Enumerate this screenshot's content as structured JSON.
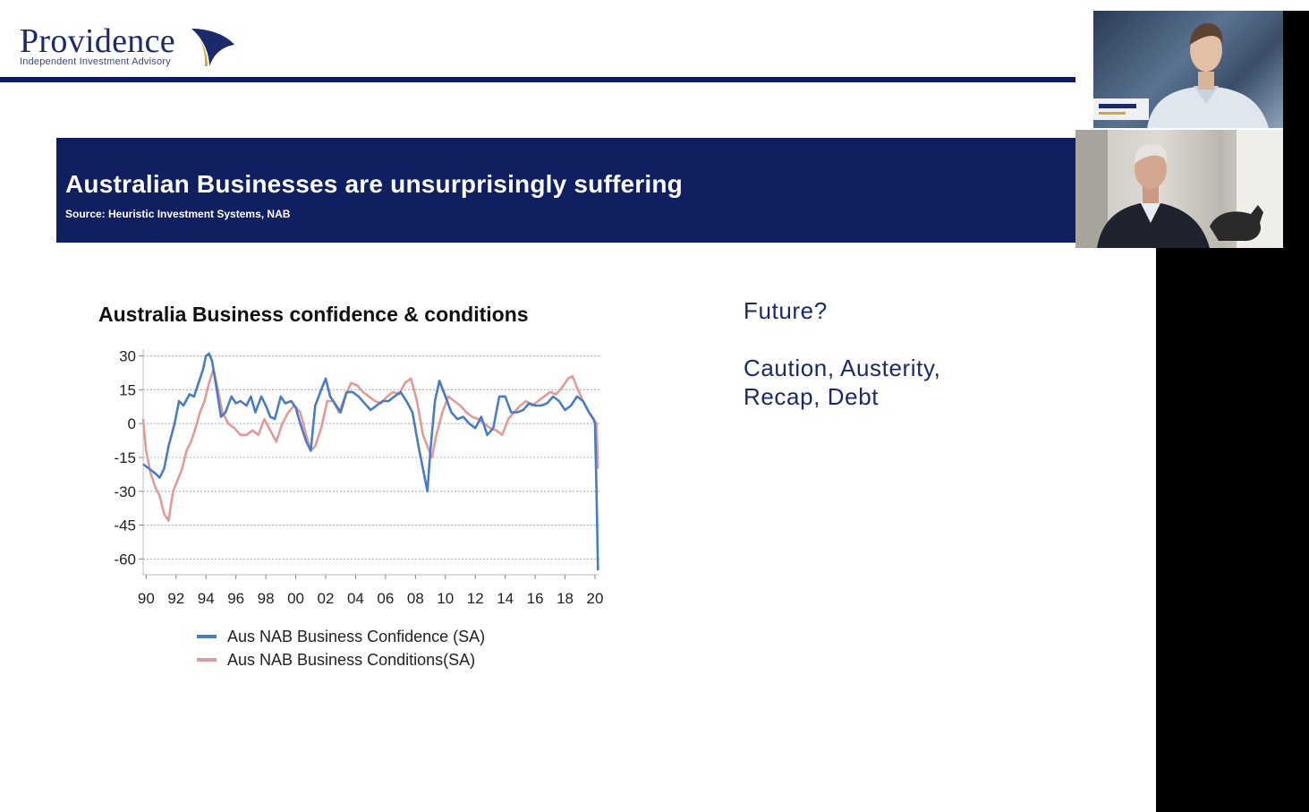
{
  "brand": {
    "name": "Providence",
    "tagline": "Independent Investment Advisory",
    "color": "#0e1c5f"
  },
  "slide": {
    "title": "Australian Businesses are unsurprisingly suffering",
    "source": "Source: Heuristic Investment Systems, NAB"
  },
  "right_panel": {
    "question": "Future?",
    "line1": "Caution, Austerity,",
    "line2": "Recap, Debt"
  },
  "video": {
    "cam1_icon": "person-video-icon",
    "cam2_icon": "person-video-icon"
  },
  "chart_data": {
    "type": "line",
    "title": "Australia Business confidence & conditions",
    "xlabel": "",
    "ylabel": "",
    "x_ticks": [
      "90",
      "92",
      "94",
      "96",
      "98",
      "00",
      "02",
      "04",
      "06",
      "08",
      "10",
      "12",
      "14",
      "16",
      "18",
      "20"
    ],
    "y_ticks": [
      30,
      15,
      0,
      -15,
      -30,
      -45,
      -60
    ],
    "ylim": [
      -67,
      33
    ],
    "xlim": [
      1989.8,
      2020.3
    ],
    "grid": true,
    "legend_position": "bottom",
    "series": [
      {
        "name": "Aus NAB Business Confidence (SA)",
        "color": "#4a7cc2",
        "x": [
          1989.8,
          1990.2,
          1990.6,
          1990.9,
          1991.2,
          1991.5,
          1991.9,
          1992.2,
          1992.5,
          1992.9,
          1993.2,
          1993.5,
          1993.8,
          1994.0,
          1994.2,
          1994.4,
          1994.7,
          1995.0,
          1995.3,
          1995.7,
          1996.0,
          1996.3,
          1996.7,
          1997.0,
          1997.3,
          1997.7,
          1998.0,
          1998.3,
          1998.6,
          1999.0,
          1999.3,
          1999.7,
          2000.0,
          2000.3,
          2000.7,
          2001.0,
          2001.3,
          2001.7,
          2002.0,
          2002.3,
          2002.7,
          2003.0,
          2003.4,
          2003.8,
          2004.2,
          2004.6,
          2005.0,
          2005.4,
          2005.8,
          2006.2,
          2006.6,
          2007.0,
          2007.4,
          2007.8,
          2008.2,
          2008.5,
          2008.8,
          2009.0,
          2009.3,
          2009.6,
          2010.0,
          2010.4,
          2010.8,
          2011.2,
          2011.6,
          2012.0,
          2012.4,
          2012.8,
          2013.2,
          2013.6,
          2014.0,
          2014.4,
          2014.8,
          2015.2,
          2015.6,
          2016.0,
          2016.4,
          2016.8,
          2017.2,
          2017.6,
          2018.0,
          2018.4,
          2018.8,
          2019.2,
          2019.6,
          2019.9,
          2020.0,
          2020.1,
          2020.2
        ],
        "values": [
          -18,
          -20,
          -22,
          -24,
          -20,
          -10,
          0,
          10,
          8,
          13,
          12,
          18,
          24,
          30,
          31,
          28,
          16,
          3,
          5,
          12,
          9,
          10,
          8,
          12,
          5,
          12,
          8,
          3,
          2,
          12,
          9,
          10,
          7,
          0,
          -8,
          -12,
          8,
          15,
          20,
          12,
          8,
          5,
          14,
          14,
          12,
          9,
          6,
          8,
          10,
          10,
          12,
          14,
          10,
          5,
          -10,
          -20,
          -30,
          -12,
          10,
          19,
          12,
          5,
          2,
          3,
          0,
          -2,
          3,
          -5,
          -2,
          12,
          12,
          5,
          5,
          6,
          9,
          8,
          8,
          9,
          12,
          10,
          6,
          8,
          12,
          10,
          5,
          2,
          0,
          -30,
          -65
        ]
      },
      {
        "name": "Aus NAB Business Conditions(SA)",
        "color": "#e29a98",
        "x": [
          1989.8,
          1990.0,
          1990.3,
          1990.6,
          1990.9,
          1991.2,
          1991.5,
          1991.8,
          1992.1,
          1992.4,
          1992.7,
          1993.0,
          1993.3,
          1993.6,
          1993.9,
          1994.2,
          1994.5,
          1994.8,
          1995.1,
          1995.5,
          1995.9,
          1996.3,
          1996.7,
          1997.1,
          1997.5,
          1997.9,
          1998.3,
          1998.7,
          1999.1,
          1999.5,
          1999.9,
          2000.3,
          2000.7,
          2001.0,
          2001.3,
          2001.7,
          2002.1,
          2002.5,
          2002.9,
          2003.3,
          2003.7,
          2004.1,
          2004.5,
          2004.9,
          2005.3,
          2005.7,
          2006.1,
          2006.5,
          2006.9,
          2007.3,
          2007.7,
          2008.1,
          2008.5,
          2008.8,
          2009.1,
          2009.4,
          2009.8,
          2010.2,
          2010.6,
          2011.0,
          2011.4,
          2011.8,
          2012.2,
          2012.6,
          2013.0,
          2013.4,
          2013.8,
          2014.2,
          2014.6,
          2015.0,
          2015.4,
          2015.8,
          2016.2,
          2016.6,
          2017.0,
          2017.4,
          2017.8,
          2018.2,
          2018.5,
          2018.8,
          2019.2,
          2019.6,
          2019.9,
          2020.1,
          2020.2
        ],
        "values": [
          2,
          -12,
          -22,
          -28,
          -32,
          -40,
          -43,
          -30,
          -25,
          -20,
          -12,
          -8,
          -2,
          5,
          10,
          18,
          24,
          15,
          5,
          0,
          -2,
          -5,
          -5,
          -3,
          -5,
          2,
          -3,
          -8,
          0,
          5,
          8,
          5,
          -5,
          -12,
          -10,
          -2,
          10,
          10,
          5,
          12,
          18,
          17,
          14,
          12,
          10,
          9,
          12,
          14,
          13,
          18,
          20,
          10,
          -5,
          -10,
          -15,
          -5,
          5,
          12,
          10,
          8,
          5,
          3,
          2,
          0,
          -2,
          -3,
          -5,
          2,
          5,
          8,
          10,
          8,
          10,
          12,
          14,
          13,
          16,
          20,
          21,
          16,
          10,
          5,
          2,
          0,
          -20
        ]
      }
    ]
  }
}
